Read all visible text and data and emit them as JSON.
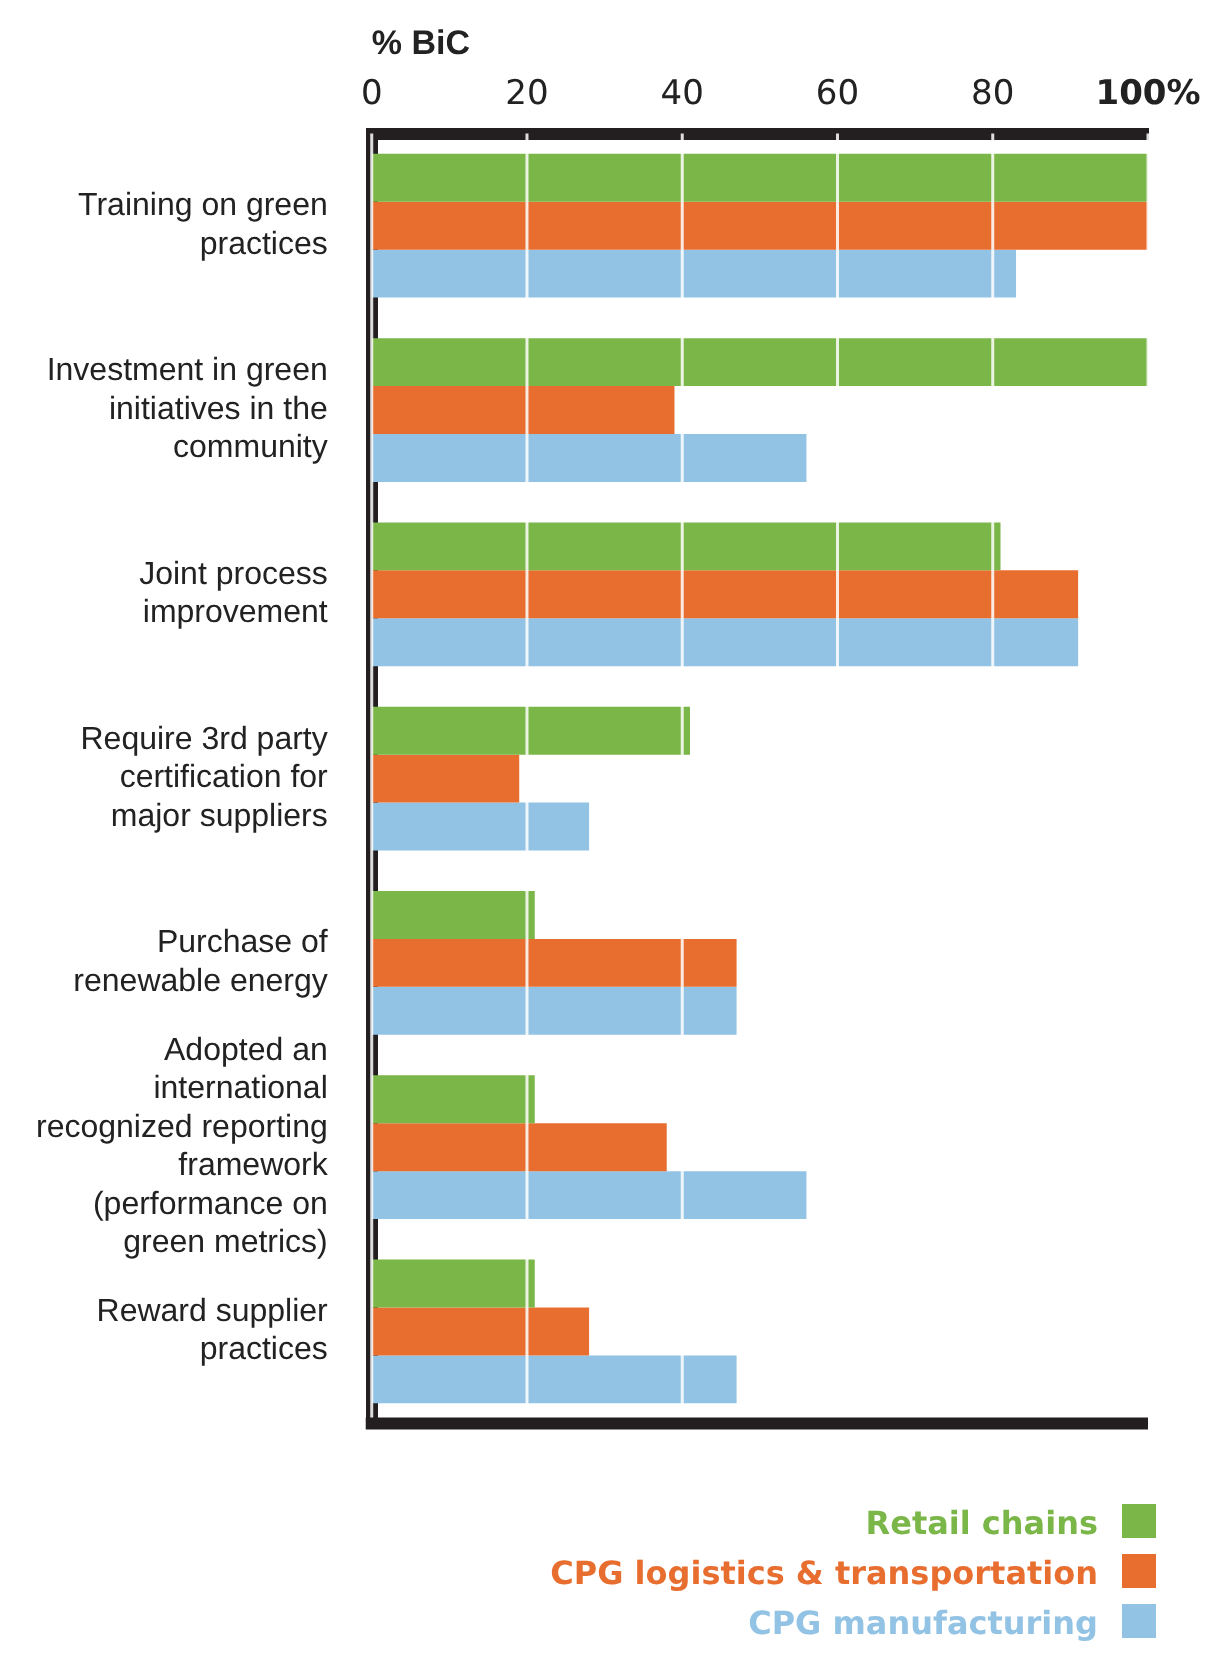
{
  "chart_data": {
    "type": "bar",
    "orientation": "horizontal",
    "xlabel": "% BiC",
    "categories": [
      "Training on green practices",
      "Investment in green initiatives in the community",
      "Joint process improvement",
      "Require 3rd party certification for major suppliers",
      "Purchase of renewable energy",
      "Adopted an international recognized reporting framework (performance on green metrics)",
      "Reward supplier practices"
    ],
    "series": [
      {
        "name": "Retail chains",
        "color": "#7ab648",
        "values": [
          100,
          100,
          81,
          41,
          21,
          21,
          21
        ]
      },
      {
        "name": "CPG logistics & transportation",
        "color": "#e86e30",
        "values": [
          100,
          39,
          91,
          19,
          47,
          38,
          28
        ]
      },
      {
        "name": "CPG manufacturing",
        "color": "#92c3e4",
        "values": [
          83,
          56,
          91,
          28,
          47,
          56,
          47
        ]
      }
    ],
    "xlim": [
      0,
      100
    ],
    "xticks": [
      0,
      20,
      40,
      60,
      80,
      {
        "value": 100,
        "label": "100%"
      }
    ],
    "grid": "x",
    "legend": "bottom right"
  }
}
